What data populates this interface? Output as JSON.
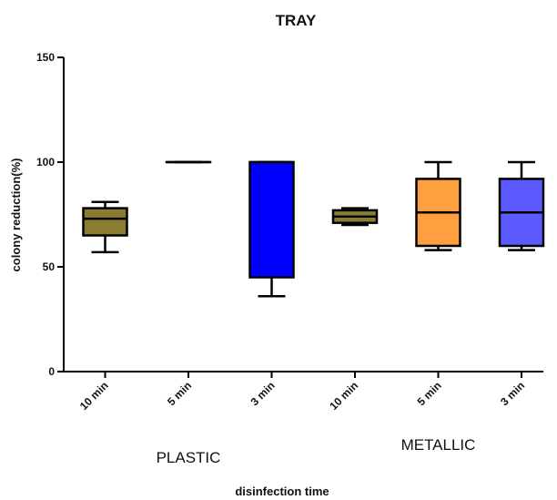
{
  "chart_data": {
    "type": "box",
    "title": "TRAY",
    "xlabel": "disinfection time",
    "ylabel": "colony reduction(%)",
    "ylim": [
      0,
      150
    ],
    "yticks": [
      0,
      50,
      100,
      150
    ],
    "categories": [
      "10 min",
      "5 min",
      "3 min",
      "10 min",
      "5 min",
      "3 min"
    ],
    "groups": [
      {
        "label": "PLASTIC",
        "indices": [
          0,
          1,
          2
        ]
      },
      {
        "label": "METALLIC",
        "indices": [
          3,
          4,
          5
        ]
      }
    ],
    "boxes": [
      {
        "category": "10 min",
        "group": "PLASTIC",
        "min": 57,
        "q1": 65,
        "median": 73,
        "q3": 78,
        "max": 81,
        "color": "#8a7c30"
      },
      {
        "category": "5 min",
        "group": "PLASTIC",
        "min": 100,
        "q1": 100,
        "median": 100,
        "q3": 100,
        "max": 100,
        "color": "#ffffff"
      },
      {
        "category": "3 min",
        "group": "PLASTIC",
        "min": 36,
        "q1": 45,
        "median": 100,
        "q3": 100,
        "max": 100,
        "color": "#0000ff"
      },
      {
        "category": "10 min",
        "group": "METALLIC",
        "min": 70,
        "q1": 71,
        "median": 74,
        "q3": 77,
        "max": 78,
        "color": "#8a7c30"
      },
      {
        "category": "5 min",
        "group": "METALLIC",
        "min": 58,
        "q1": 60,
        "median": 76,
        "q3": 92,
        "max": 100,
        "color": "#ffa040"
      },
      {
        "category": "3 min",
        "group": "METALLIC",
        "min": 58,
        "q1": 60,
        "median": 76,
        "q3": 92,
        "max": 100,
        "color": "#5a5aff"
      }
    ]
  }
}
